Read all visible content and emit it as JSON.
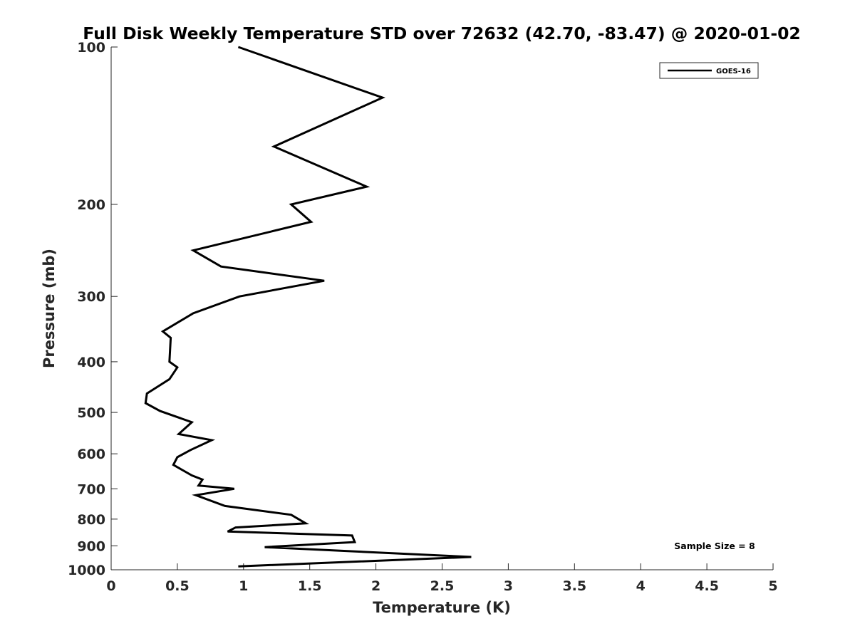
{
  "chart_data": {
    "type": "line",
    "title": "Full Disk Weekly Temperature STD over 72632 (42.70, -83.47) @ 2020-01-02",
    "xlabel": "Temperature (K)",
    "ylabel": "Pressure (mb)",
    "xlim": [
      0,
      5
    ],
    "ylim": [
      100,
      1000
    ],
    "y_scale": "log",
    "y_reversed": true,
    "x_ticks": [
      0,
      0.5,
      1,
      1.5,
      2,
      2.5,
      3,
      3.5,
      4,
      4.5,
      5
    ],
    "x_tick_labels": [
      "0",
      "0.5",
      "1",
      "1.5",
      "2",
      "2.5",
      "3",
      "3.5",
      "4",
      "4.5",
      "5"
    ],
    "y_ticks": [
      100,
      200,
      300,
      400,
      500,
      600,
      700,
      800,
      900,
      1000
    ],
    "y_tick_labels": [
      "100",
      "200",
      "300",
      "400",
      "500",
      "600",
      "700",
      "800",
      "900",
      "1000"
    ],
    "grid": false,
    "legend_position": "top-right",
    "annotation": "Sample Size = 8",
    "series": [
      {
        "name": "GOES-16",
        "color": "#000000",
        "points": [
          [
            0.96,
            100
          ],
          [
            2.05,
            125
          ],
          [
            1.23,
            155
          ],
          [
            1.93,
            185
          ],
          [
            1.36,
            200
          ],
          [
            1.51,
            216
          ],
          [
            0.62,
            245
          ],
          [
            0.83,
            263
          ],
          [
            1.61,
            280
          ],
          [
            0.97,
            300
          ],
          [
            0.62,
            323
          ],
          [
            0.39,
            350
          ],
          [
            0.45,
            360
          ],
          [
            0.44,
            400
          ],
          [
            0.5,
            410
          ],
          [
            0.44,
            432
          ],
          [
            0.27,
            460
          ],
          [
            0.26,
            480
          ],
          [
            0.37,
            497
          ],
          [
            0.61,
            522
          ],
          [
            0.51,
            550
          ],
          [
            0.76,
            565
          ],
          [
            0.6,
            590
          ],
          [
            0.5,
            609
          ],
          [
            0.47,
            630
          ],
          [
            0.61,
            660
          ],
          [
            0.69,
            672
          ],
          [
            0.66,
            690
          ],
          [
            0.93,
            700
          ],
          [
            0.64,
            720
          ],
          [
            0.86,
            755
          ],
          [
            1.36,
            785
          ],
          [
            1.47,
            815
          ],
          [
            0.94,
            830
          ],
          [
            0.88,
            845
          ],
          [
            1.82,
            860
          ],
          [
            1.84,
            885
          ],
          [
            1.16,
            905
          ],
          [
            2.72,
            945
          ],
          [
            0.96,
            985
          ]
        ]
      }
    ]
  }
}
